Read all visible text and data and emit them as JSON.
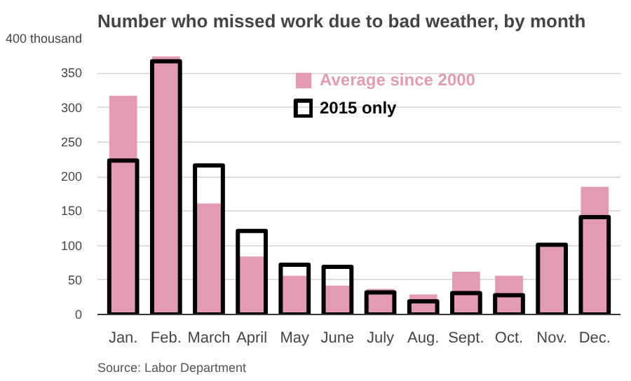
{
  "chart_data": {
    "type": "bar",
    "title": "Number who missed work due to bad weather, by month",
    "categories": [
      "Jan.",
      "Feb.",
      "March",
      "April",
      "May",
      "June",
      "July",
      "Aug.",
      "Sept.",
      "Oct.",
      "Nov.",
      "Dec."
    ],
    "series": [
      {
        "name": "Average since 2000",
        "color": "#e39ab4",
        "values": [
          317,
          374,
          161,
          84,
          56,
          42,
          37,
          29,
          62,
          56,
          98,
          185
        ]
      },
      {
        "name": "2015 only",
        "color": "#000000",
        "values": [
          223,
          367,
          216,
          121,
          72,
          69,
          32,
          19,
          31,
          28,
          101,
          141
        ]
      }
    ],
    "ylim": [
      0,
      400
    ],
    "yticks": [
      0,
      50,
      100,
      150,
      200,
      250,
      300,
      350,
      {
        "value": 400,
        "label": "400 thousand"
      }
    ],
    "grid": "y",
    "legend": "top",
    "annotations": [
      "Source: Labor Department"
    ]
  }
}
